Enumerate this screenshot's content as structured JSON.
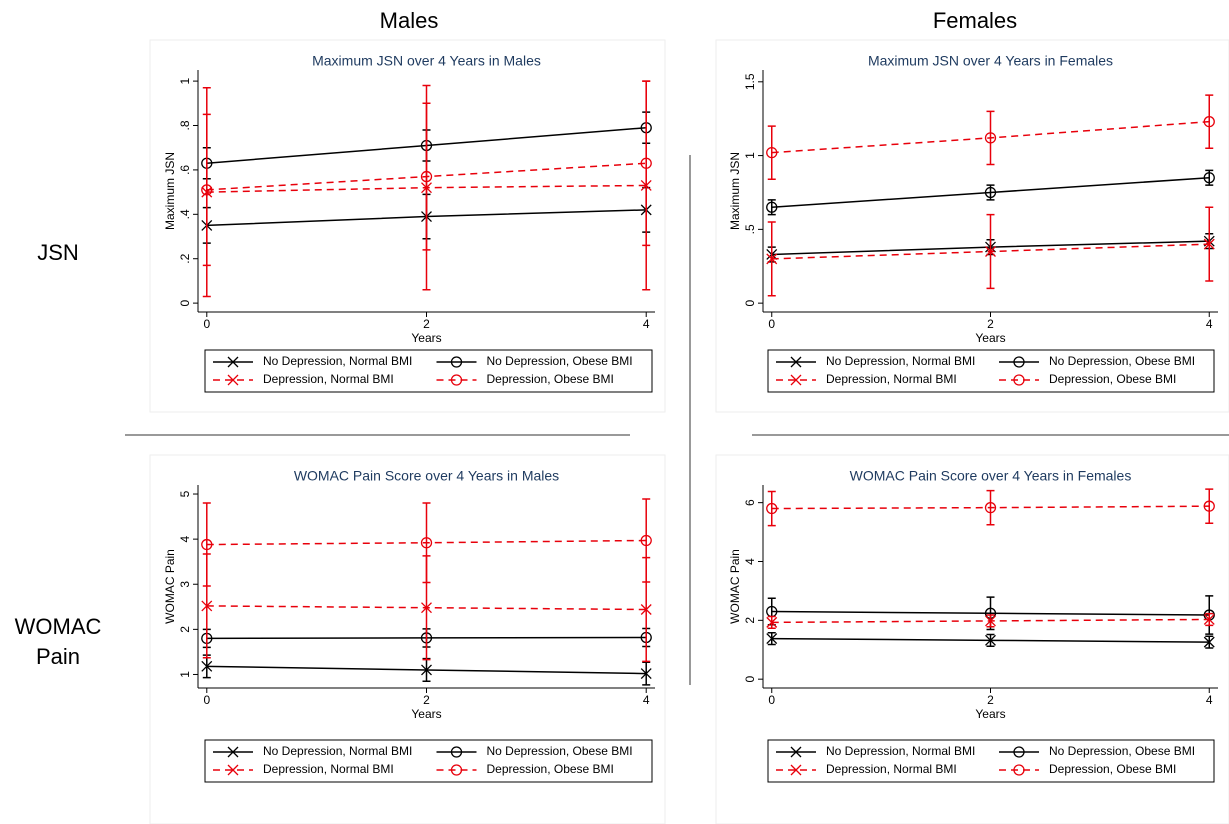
{
  "column_labels": [
    "Males",
    "Females"
  ],
  "row_labels": [
    "JSN",
    "WOMAC Pain"
  ],
  "chart_data": [
    {
      "type": "line",
      "title": "Maximum JSN over 4 Years in Males",
      "x_label": "Years",
      "y_label": "Maximum JSN",
      "x": [
        0,
        2,
        4
      ],
      "xlim": [
        -0.08,
        4.08
      ],
      "xticks": [
        0,
        2,
        4
      ],
      "ylim": [
        -0.04,
        1.05
      ],
      "yticks": [
        0,
        {
          "value": 0.2,
          "label": ".2"
        },
        {
          "value": 0.4,
          "label": ".4"
        },
        {
          "value": 0.6,
          "label": ".6"
        },
        {
          "value": 0.8,
          "label": ".8"
        },
        1
      ],
      "legend": "bottom",
      "series": [
        {
          "name": "No Depression, Normal BMI",
          "color": "#000000",
          "line_style": "solid",
          "marker": "x",
          "values": [
            0.35,
            0.39,
            0.42
          ],
          "errors": [
            0.08,
            0.1,
            0.1
          ]
        },
        {
          "name": "No Depression, Obese BMI",
          "color": "#000000",
          "line_style": "solid",
          "marker": "circle",
          "values": [
            0.63,
            0.71,
            0.79
          ],
          "errors": [
            0.07,
            0.07,
            0.07
          ]
        },
        {
          "name": "Depression, Normal BMI",
          "color": "#e8000b",
          "line_style": "dashed",
          "marker": "x",
          "values": [
            0.5,
            0.52,
            0.53
          ],
          "errors": [
            0.47,
            0.46,
            0.47
          ]
        },
        {
          "name": "Depression, Obese BMI",
          "color": "#e8000b",
          "line_style": "dashed",
          "marker": "circle",
          "values": [
            0.51,
            0.57,
            0.63
          ],
          "errors": [
            0.34,
            0.33,
            0.37
          ]
        }
      ]
    },
    {
      "type": "line",
      "title": "Maximum JSN over 4 Years in Females",
      "x_label": "Years",
      "y_label": "Maximum JSN",
      "x": [
        0,
        2,
        4
      ],
      "xlim": [
        -0.08,
        4.08
      ],
      "xticks": [
        0,
        2,
        4
      ],
      "ylim": [
        -0.06,
        1.58
      ],
      "yticks": [
        0,
        {
          "value": 0.5,
          "label": ".5"
        },
        1,
        1.5
      ],
      "legend": "bottom",
      "series": [
        {
          "name": "No Depression, Normal BMI",
          "color": "#000000",
          "line_style": "solid",
          "marker": "x",
          "values": [
            0.33,
            0.38,
            0.42
          ],
          "errors": [
            0.05,
            0.05,
            0.05
          ]
        },
        {
          "name": "No Depression, Obese BMI",
          "color": "#000000",
          "line_style": "solid",
          "marker": "circle",
          "values": [
            0.65,
            0.75,
            0.85
          ],
          "errors": [
            0.05,
            0.05,
            0.05
          ]
        },
        {
          "name": "Depression, Normal BMI",
          "color": "#e8000b",
          "line_style": "dashed",
          "marker": "x",
          "values": [
            0.3,
            0.35,
            0.4
          ],
          "errors": [
            0.25,
            0.25,
            0.25
          ]
        },
        {
          "name": "Depression, Obese BMI",
          "color": "#e8000b",
          "line_style": "dashed",
          "marker": "circle",
          "values": [
            1.02,
            1.12,
            1.23
          ],
          "errors": [
            0.18,
            0.18,
            0.18
          ]
        }
      ]
    },
    {
      "type": "line",
      "title": "WOMAC Pain Score over 4 Years in Males",
      "x_label": "Years",
      "y_label": "WOMAC Pain",
      "x": [
        0,
        2,
        4
      ],
      "xlim": [
        -0.08,
        4.08
      ],
      "xticks": [
        0,
        2,
        4
      ],
      "ylim": [
        0.7,
        5.2
      ],
      "yticks": [
        1,
        2,
        3,
        4,
        5
      ],
      "legend": "bottom",
      "series": [
        {
          "name": "No Depression, Normal BMI",
          "color": "#000000",
          "line_style": "solid",
          "marker": "x",
          "values": [
            1.18,
            1.1,
            1.02
          ],
          "errors": [
            0.25,
            0.25,
            0.25
          ]
        },
        {
          "name": "No Depression, Obese BMI",
          "color": "#000000",
          "line_style": "solid",
          "marker": "circle",
          "values": [
            1.8,
            1.81,
            1.82
          ],
          "errors": [
            0.2,
            0.2,
            0.2
          ]
        },
        {
          "name": "Depression, Normal BMI",
          "color": "#e8000b",
          "line_style": "dashed",
          "marker": "x",
          "values": [
            2.52,
            2.48,
            2.44
          ],
          "errors": [
            1.15,
            1.15,
            1.15
          ]
        },
        {
          "name": "Depression, Obese BMI",
          "color": "#e8000b",
          "line_style": "dashed",
          "marker": "circle",
          "values": [
            3.88,
            3.92,
            3.97
          ],
          "errors": [
            0.92,
            0.88,
            0.92
          ]
        }
      ]
    },
    {
      "type": "line",
      "title": "WOMAC Pain Score over 4 Years in Females",
      "x_label": "Years",
      "y_label": "WOMAC Pain",
      "x": [
        0,
        2,
        4
      ],
      "xlim": [
        -0.08,
        4.08
      ],
      "xticks": [
        0,
        2,
        4
      ],
      "ylim": [
        -0.3,
        6.6
      ],
      "yticks": [
        0,
        2,
        4,
        6
      ],
      "legend": "bottom",
      "series": [
        {
          "name": "No Depression, Normal BMI",
          "color": "#000000",
          "line_style": "solid",
          "marker": "x",
          "values": [
            1.38,
            1.32,
            1.26
          ],
          "errors": [
            0.2,
            0.2,
            0.2
          ]
        },
        {
          "name": "No Depression, Obese BMI",
          "color": "#000000",
          "line_style": "solid",
          "marker": "circle",
          "values": [
            2.3,
            2.24,
            2.18
          ],
          "errors": [
            0.45,
            0.55,
            0.65
          ]
        },
        {
          "name": "Depression, Normal BMI",
          "color": "#e8000b",
          "line_style": "dashed",
          "marker": "x",
          "values": [
            1.93,
            1.98,
            2.03
          ],
          "errors": [
            0.2,
            0.2,
            0.2
          ]
        },
        {
          "name": "Depression, Obese BMI",
          "color": "#e8000b",
          "line_style": "dashed",
          "marker": "circle",
          "values": [
            5.8,
            5.83,
            5.88
          ],
          "errors": [
            0.58,
            0.58,
            0.58
          ]
        }
      ]
    }
  ]
}
